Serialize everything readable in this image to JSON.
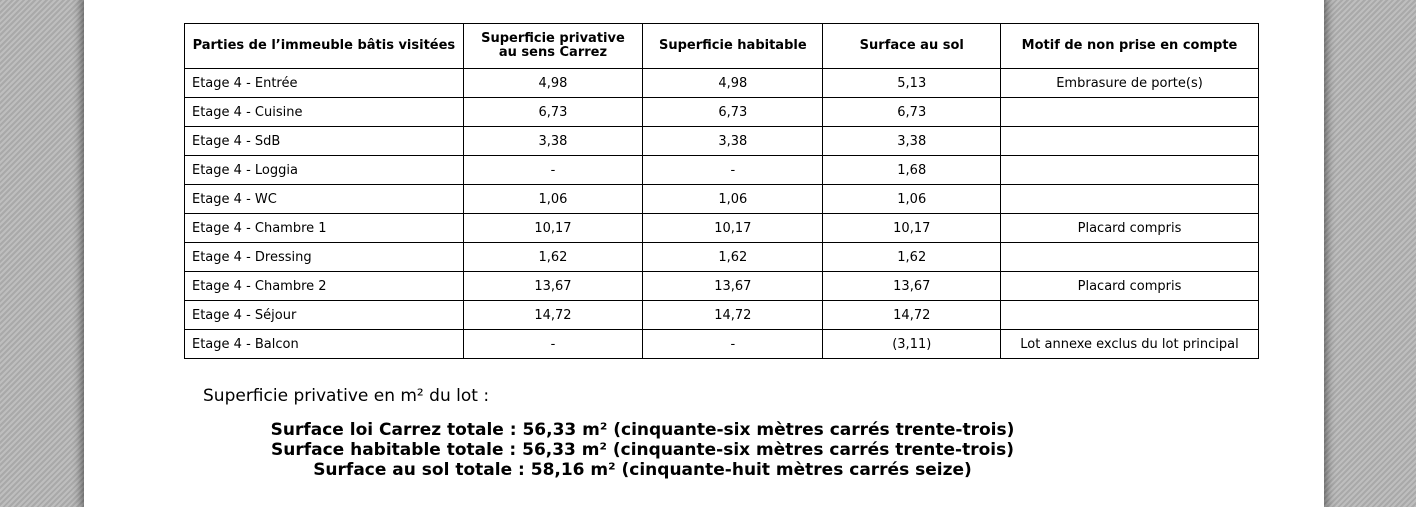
{
  "table": {
    "headers": [
      "Parties de l’immeuble bâtis visitées",
      "Superficie privative au sens Carrez",
      "Superficie habitable",
      "Surface au sol",
      "Motif de non prise en compte"
    ],
    "rows": [
      {
        "room": "Etage 4 - Entrée",
        "carrez": "4,98",
        "habitable": "4,98",
        "sol": "5,13",
        "motif": "Embrasure de porte(s)"
      },
      {
        "room": "Etage 4 - Cuisine",
        "carrez": "6,73",
        "habitable": "6,73",
        "sol": "6,73",
        "motif": ""
      },
      {
        "room": "Etage 4 - SdB",
        "carrez": "3,38",
        "habitable": "3,38",
        "sol": "3,38",
        "motif": ""
      },
      {
        "room": "Etage 4 - Loggia",
        "carrez": "-",
        "habitable": "-",
        "sol": "1,68",
        "motif": ""
      },
      {
        "room": "Etage 4 - WC",
        "carrez": "1,06",
        "habitable": "1,06",
        "sol": "1,06",
        "motif": ""
      },
      {
        "room": "Etage 4 - Chambre 1",
        "carrez": "10,17",
        "habitable": "10,17",
        "sol": "10,17",
        "motif": "Placard compris"
      },
      {
        "room": "Etage 4 - Dressing",
        "carrez": "1,62",
        "habitable": "1,62",
        "sol": "1,62",
        "motif": ""
      },
      {
        "room": "Etage 4 - Chambre 2",
        "carrez": "13,67",
        "habitable": "13,67",
        "sol": "13,67",
        "motif": "Placard compris"
      },
      {
        "room": "Etage 4 - Séjour",
        "carrez": "14,72",
        "habitable": "14,72",
        "sol": "14,72",
        "motif": ""
      },
      {
        "room": "Etage 4 - Balcon",
        "carrez": "-",
        "habitable": "-",
        "sol": "(3,11)",
        "motif": "Lot annexe exclus du lot principal"
      }
    ]
  },
  "summary": {
    "label": "Superficie privative en m² du lot :",
    "carrez_total": "Surface loi Carrez totale : 56,33 m² (cinquante-six mètres carrés trente-trois)",
    "habitable_total": "Surface habitable totale : 56,33 m² (cinquante-six mètres carrés trente-trois)",
    "sol_total": "Surface au sol totale : 58,16 m² (cinquante-huit mètres carrés seize)"
  }
}
